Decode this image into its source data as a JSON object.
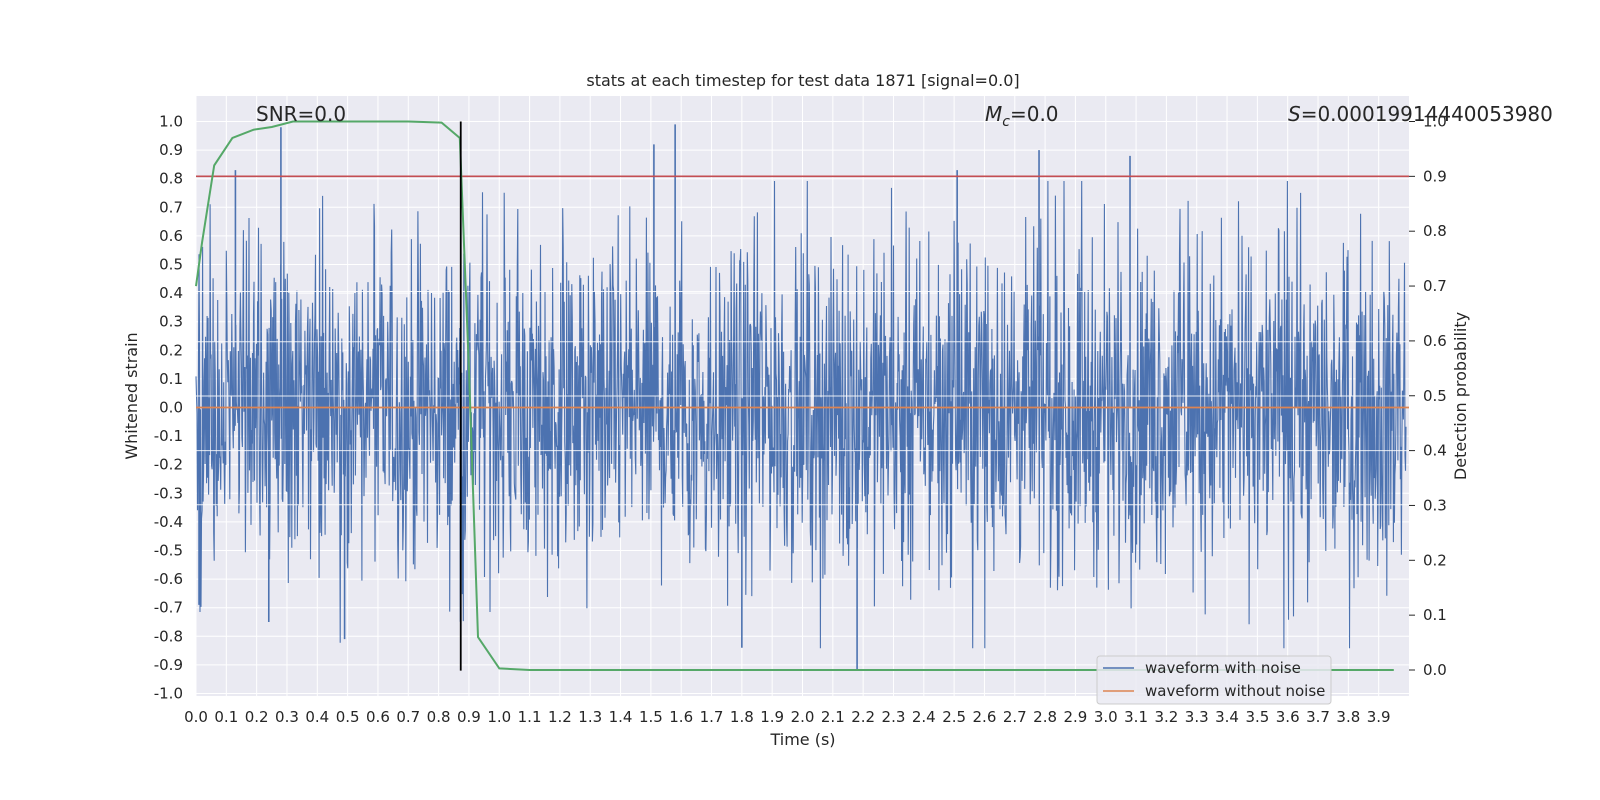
{
  "chart_data": {
    "type": "line",
    "title": "stats at each timestep for test data 1871 [signal=0.0]",
    "xlabel": "Time (s)",
    "ylabel": "Whitened strain",
    "y2label": "Detection probability",
    "xlim": [
      0.0,
      4.0
    ],
    "ylim": [
      -1.0,
      1.0
    ],
    "y2lim": [
      -0.05,
      1.0
    ],
    "x_ticks": [
      0.0,
      0.1,
      0.2,
      0.3,
      0.4,
      0.5,
      0.6,
      0.7,
      0.8,
      0.9,
      1.0,
      1.1,
      1.2,
      1.3,
      1.4,
      1.5,
      1.6,
      1.7,
      1.8,
      1.9,
      2.0,
      2.1,
      2.2,
      2.3,
      2.4,
      2.5,
      2.6,
      2.7,
      2.8,
      2.9,
      3.0,
      3.1,
      3.2,
      3.3,
      3.4,
      3.5,
      3.6,
      3.7,
      3.8,
      3.9
    ],
    "y_ticks": [
      -1.0,
      -0.9,
      -0.8,
      -0.7,
      -0.6,
      -0.5,
      -0.4,
      -0.3,
      -0.2,
      -0.1,
      0.0,
      0.1,
      0.2,
      0.3,
      0.4,
      0.5,
      0.6,
      0.7,
      0.8,
      0.9,
      1.0
    ],
    "y2_ticks": [
      0.0,
      0.1,
      0.2,
      0.3,
      0.4,
      0.5,
      0.6,
      0.7,
      0.8,
      0.9,
      1.0
    ],
    "grid": true,
    "legend_position": "bottom-right",
    "colors": {
      "noise": "#4c72b0",
      "clean": "#dd8452",
      "probability": "#55a868",
      "threshold": "#c44e52",
      "marker": "#000000",
      "background": "#eaeaf2",
      "grid": "#ffffff"
    },
    "series": [
      {
        "name": "waveform with noise",
        "axis": "left",
        "description_range": [
          -0.92,
          0.99
        ],
        "peaks": [
          {
            "x": 0.28,
            "y": 0.98
          },
          {
            "x": 0.13,
            "y": 0.83
          },
          {
            "x": 1.51,
            "y": 0.92
          },
          {
            "x": 1.58,
            "y": 0.99
          },
          {
            "x": 2.78,
            "y": 0.9
          },
          {
            "x": 3.08,
            "y": 0.88
          },
          {
            "x": 2.51,
            "y": 0.83
          },
          {
            "x": 2.18,
            "y": -0.92
          },
          {
            "x": 0.24,
            "y": -0.75
          },
          {
            "x": 1.8,
            "y": -0.84
          },
          {
            "x": 0.49,
            "y": -0.81
          },
          {
            "x": 0.01,
            "y": -0.69
          }
        ]
      },
      {
        "name": "waveform without noise",
        "axis": "left",
        "x": [
          0.0,
          4.0
        ],
        "y": [
          0.0,
          0.0
        ]
      },
      {
        "name": "detection probability",
        "axis": "right",
        "x": [
          0.0,
          0.02,
          0.06,
          0.12,
          0.19,
          0.25,
          0.32,
          0.5,
          0.7,
          0.81,
          0.87,
          0.9,
          0.93,
          1.0,
          1.1,
          1.5,
          2.5,
          3.5,
          3.95
        ],
        "y": [
          0.7,
          0.78,
          0.92,
          0.97,
          0.985,
          0.99,
          1.0,
          1.0,
          1.0,
          0.998,
          0.97,
          0.55,
          0.06,
          0.003,
          0.0,
          0.0,
          0.0,
          0.0,
          0.0
        ]
      }
    ],
    "threshold": {
      "axis": "right",
      "value": 0.9
    },
    "marker_line": {
      "x": 0.873,
      "y_range": [
        -0.92,
        1.0
      ]
    },
    "annotations": {
      "snr": "SNR=0.0",
      "mc_symbol": "M",
      "mc_subscript": "c",
      "mc_value": "=0.0",
      "s_symbol": "S",
      "s_value": "=0.00019914440053980"
    }
  }
}
